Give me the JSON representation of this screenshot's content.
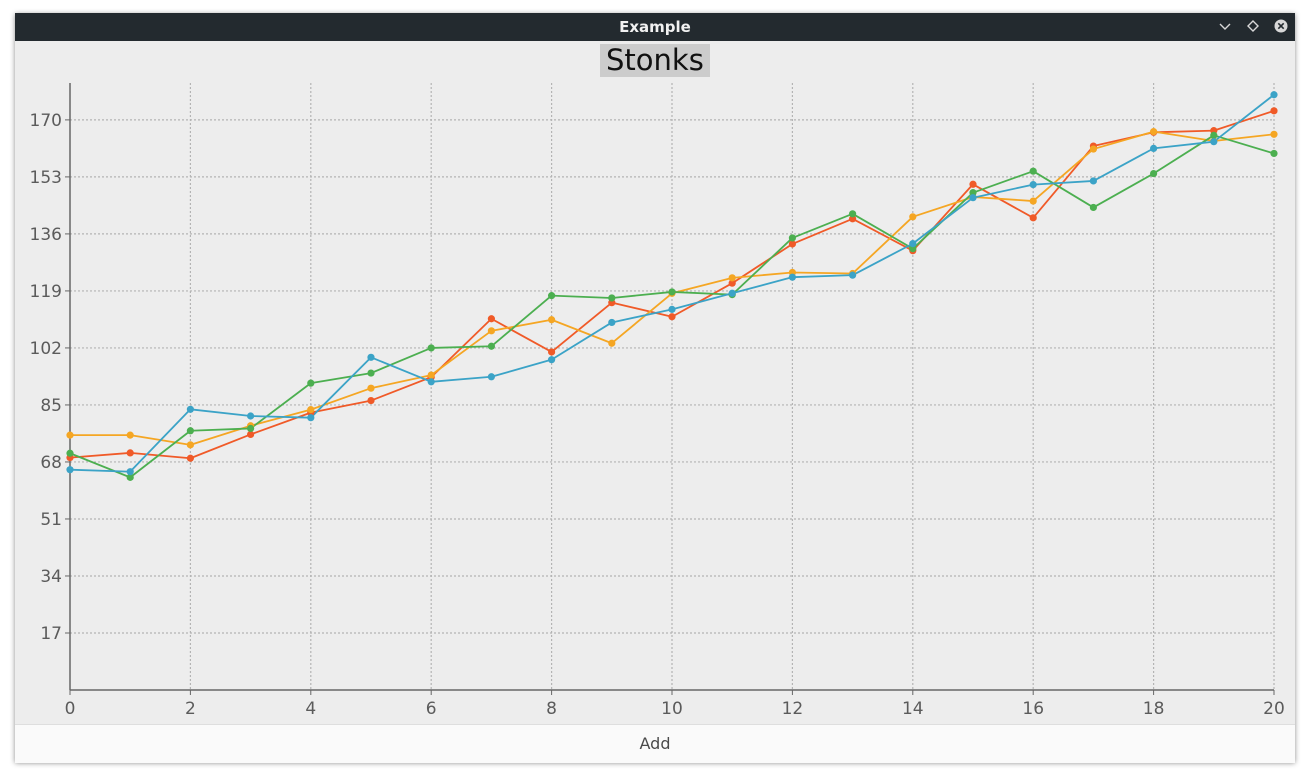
{
  "window": {
    "title": "Example"
  },
  "controls": {
    "add_label": "Add"
  },
  "icons": {
    "minimize": "chevron-down-icon",
    "maximize": "diamond-icon",
    "close": "close-circle-icon"
  },
  "chart_data": {
    "type": "line",
    "title": "Stonks",
    "xlabel": "",
    "ylabel": "",
    "xlim": [
      0,
      20
    ],
    "ylim": [
      0,
      181
    ],
    "x_ticks": [
      0,
      2,
      4,
      6,
      8,
      10,
      12,
      14,
      16,
      18,
      20
    ],
    "y_ticks": [
      17,
      34,
      51,
      68,
      85,
      102,
      119,
      136,
      153,
      170
    ],
    "grid": true,
    "legend": "none",
    "x": [
      0,
      1,
      2,
      3,
      4,
      5,
      6,
      7,
      8,
      9,
      10,
      11,
      12,
      13,
      14,
      15,
      16,
      17,
      18,
      19,
      20
    ],
    "series": [
      {
        "color": "#f05a28",
        "values": [
          69.3,
          70.7,
          69.1,
          76.2,
          82.7,
          86.3,
          93.3,
          110.7,
          100.8,
          115.5,
          111.3,
          121.3,
          133.0,
          140.5,
          131.0,
          150.8,
          140.8,
          162.2,
          166.3,
          166.8,
          172.7
        ]
      },
      {
        "color": "#f5a623",
        "values": [
          76.0,
          76.0,
          73.1,
          78.8,
          83.6,
          90.0,
          93.9,
          107.1,
          110.4,
          103.4,
          118.3,
          122.9,
          124.5,
          124.2,
          141.1,
          147.0,
          145.8,
          161.3,
          166.5,
          163.7,
          165.7
        ]
      },
      {
        "color": "#4caf50",
        "values": [
          70.6,
          63.4,
          77.3,
          78.0,
          91.5,
          94.5,
          102.0,
          102.5,
          117.6,
          116.9,
          118.7,
          117.9,
          134.8,
          142.0,
          131.6,
          148.3,
          154.7,
          143.9,
          154.0,
          165.4,
          160.0
        ]
      },
      {
        "color": "#3ba3c7",
        "values": [
          65.7,
          65.1,
          83.7,
          81.7,
          81.2,
          99.2,
          91.9,
          93.4,
          98.5,
          109.6,
          113.5,
          118.3,
          123.1,
          123.7,
          133.1,
          146.8,
          150.7,
          151.8,
          161.5,
          163.5,
          177.5
        ]
      }
    ]
  }
}
